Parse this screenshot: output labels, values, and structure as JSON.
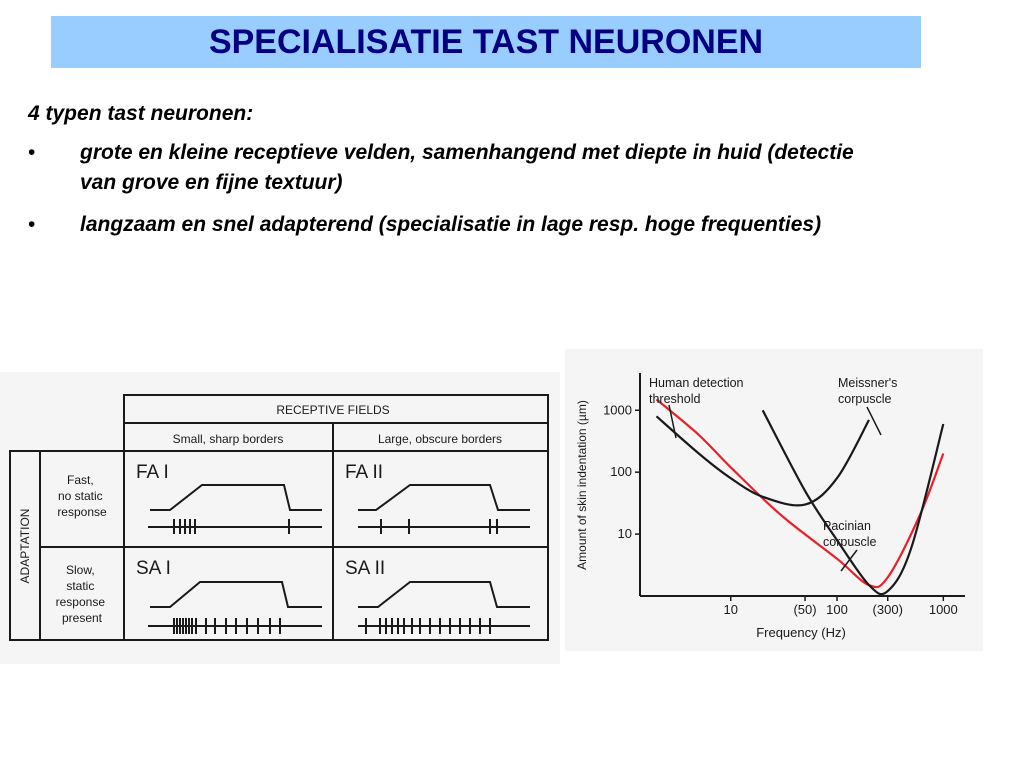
{
  "slide": {
    "title": "SPECIALISATIE TAST NEURONEN",
    "intro": "4 typen tast neuronen:",
    "bullets": [
      {
        "marker": "•",
        "text": "grote en kleine receptieve velden, samenhangend met diepte in huid (detectie van grove en fijne textuur)"
      },
      {
        "marker": "•",
        "text": "langzaam en snel adapterend (specialisatie in lage resp. hoge frequenties)"
      }
    ]
  },
  "receptive_figure": {
    "header": "RECEPTIVE FIELDS",
    "col_small": "Small, sharp borders",
    "col_large": "Large, obscure borders",
    "row_header": "ADAPTATION",
    "row_fast": [
      "Fast,",
      "no static",
      "response"
    ],
    "row_slow": [
      "Slow,",
      "static",
      "response",
      "present"
    ],
    "cells": {
      "fa1": "FA I",
      "fa2": "FA II",
      "sa1": "SA I",
      "sa2": "SA II"
    }
  },
  "chart_data": {
    "type": "line",
    "xlabel": "Frequency (Hz)",
    "ylabel": "Amount of skin indentation (µm)",
    "x_scale": "log",
    "y_scale": "log",
    "x_ticks": [
      "10",
      "(50)",
      "100",
      "(300)",
      "1000"
    ],
    "y_ticks": [
      "1000",
      "100",
      "10"
    ],
    "annotations": [
      "Human detection threshold",
      "Meissner's corpuscle",
      "Pacinian corpuscle"
    ],
    "series": [
      {
        "name": "Human detection threshold",
        "color": "#e8202a",
        "x": [
          2,
          5,
          10,
          30,
          100,
          200,
          300,
          600,
          1000
        ],
        "y": [
          1500,
          400,
          120,
          20,
          4,
          1.5,
          2,
          20,
          200
        ]
      },
      {
        "name": "Meissner's corpuscle",
        "color": "#1a1a1a",
        "x": [
          2,
          5,
          10,
          20,
          50,
          100,
          200
        ],
        "y": [
          800,
          200,
          80,
          40,
          30,
          80,
          700
        ]
      },
      {
        "name": "Pacinian corpuscle",
        "color": "#1a1a1a",
        "x": [
          20,
          50,
          100,
          200,
          300,
          500,
          1000
        ],
        "y": [
          1000,
          50,
          8,
          1.5,
          1.2,
          6,
          600
        ]
      }
    ]
  }
}
